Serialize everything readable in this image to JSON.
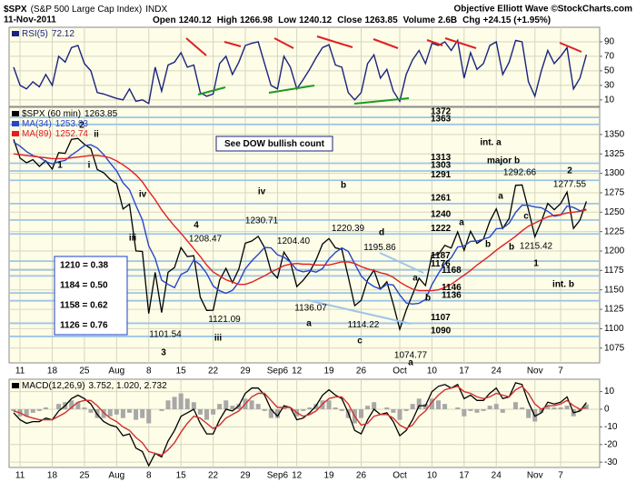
{
  "header": {
    "symbol": "$SPX",
    "title": "(S&P 500 Large Cap Index)",
    "exchange": "INDX",
    "date": "11-Nov-2011",
    "brand": "Objective Elliott Wave ©StockCharts.com",
    "quote": [
      {
        "label": "Open",
        "value": "1240.12"
      },
      {
        "label": "High",
        "value": "1266.98"
      },
      {
        "label": "Low",
        "value": "1240.12"
      },
      {
        "label": "Close",
        "value": "1263.85"
      },
      {
        "label": "Volume",
        "value": "2.6B"
      },
      {
        "label": "Chg",
        "value": "+24.15 (+1.95%)"
      }
    ]
  },
  "chart_data": {
    "type": "financial",
    "categories": [
      null,
      "11",
      null,
      null,
      null,
      null,
      "18",
      null,
      null,
      null,
      null,
      "25",
      null,
      null,
      null,
      null,
      "Aug",
      null,
      null,
      null,
      null,
      "8",
      null,
      null,
      null,
      null,
      "15",
      null,
      null,
      null,
      null,
      "22",
      null,
      null,
      null,
      null,
      "29",
      null,
      null,
      null,
      null,
      "Sep6",
      null,
      null,
      "12",
      null,
      null,
      null,
      null,
      "19",
      null,
      null,
      null,
      null,
      "26",
      null,
      null,
      null,
      null,
      null,
      "Oct",
      null,
      null,
      null,
      null,
      "10",
      null,
      null,
      null,
      null,
      "17",
      null,
      null,
      null,
      null,
      "24",
      null,
      null,
      null,
      null,
      null,
      "Nov",
      null,
      null,
      null,
      "7",
      null,
      null,
      null,
      null
    ],
    "panels": [
      {
        "ylim": [
          1,
          110
        ],
        "yticks": [
          90,
          70,
          50,
          30,
          10
        ],
        "grid": true,
        "series": [
          {
            "name": "RSI(5)",
            "type": "line",
            "color": "#1a237e",
            "values": [
              55,
              30,
              25,
              35,
              28,
              45,
              30,
              70,
              62,
              82,
              85,
              60,
              50,
              20,
              18,
              15,
              12,
              10,
              25,
              8,
              10,
              5,
              55,
              22,
              58,
              62,
              75,
              55,
              58,
              20,
              15,
              18,
              60,
              70,
              45,
              62,
              85,
              88,
              90,
              60,
              30,
              25,
              70,
              55,
              25,
              38,
              52,
              68,
              82,
              86,
              58,
              55,
              20,
              10,
              20,
              60,
              72,
              40,
              52,
              22,
              8,
              45,
              65,
              78,
              60,
              88,
              85,
              90,
              78,
              92,
              40,
              75,
              52,
              60,
              85,
              90,
              45,
              62,
              92,
              90,
              35,
              15,
              50,
              78,
              60,
              70,
              82,
              25,
              40,
              72.12
            ]
          }
        ]
      },
      {
        "ylim": [
          1056,
          1385
        ],
        "yticks": [
          1350,
          1325,
          1300,
          1275,
          1250,
          1225,
          1200,
          1175,
          1150,
          1125,
          1100,
          1075
        ],
        "grid": true,
        "series": [
          {
            "name": "$SPX (60 min)",
            "type": "line",
            "color": "#000000",
            "values": [
              1343.8,
              1319.5,
              1313.6,
              1317.7,
              1308.9,
              1316.1,
              1305.4,
              1326.7,
              1325.8,
              1343.8,
              1345.0,
              1337.4,
              1331.9,
              1304.9,
              1300.7,
              1292.3,
              1286.9,
              1254.1,
              1260.3,
              1200.1,
              1199.4,
              1119.5,
              1172.5,
              1120.8,
              1172.6,
              1178.8,
              1204.5,
              1192.8,
              1193.9,
              1140.7,
              1123.5,
              1123.8,
              1162.4,
              1177.6,
              1159.3,
              1176.8,
              1210.1,
              1212.9,
              1218.9,
              1204.4,
              1174.0,
              1165.2,
              1198.6,
              1185.9,
              1154.2,
              1162.3,
              1172.9,
              1188.7,
              1209.1,
              1216.0,
              1204.1,
              1202.1,
              1166.8,
              1129.6,
              1136.4,
              1162.9,
              1175.4,
              1151.1,
              1160.4,
              1131.4,
              1099.2,
              1123.9,
              1144.0,
              1165.0,
              1155.5,
              1194.9,
              1195.5,
              1207.3,
              1203.7,
              1224.6,
              1200.9,
              1225.4,
              1209.9,
              1215.4,
              1238.3,
              1254.2,
              1229.1,
              1242.0,
              1284.6,
              1285.1,
              1253.3,
              1218.3,
              1237.9,
              1261.2,
              1253.2,
              1261.1,
              1275.9,
              1229.1,
              1239.7,
              1263.85
            ]
          },
          {
            "name": "MA(34)",
            "type": "line",
            "color": "#2846c8",
            "values": [
              1340,
              1335,
              1328,
              1323,
              1320.7,
              1315.2,
              1312.3,
              1315.0,
              1316.6,
              1323.6,
              1329.3,
              1335.7,
              1336.8,
              1332.6,
              1324.0,
              1313.4,
              1303.3,
              1287.8,
              1278.9,
              1258.7,
              1240.2,
              1206.7,
              1190.4,
              1162.5,
              1157.0,
              1152.8,
              1169.8,
              1173.9,
              1188.5,
              1182.1,
              1171.1,
              1154.9,
              1148.9,
              1145.6,
              1149.3,
              1160.0,
              1177.2,
              1187.3,
              1195.6,
              1204.6,
              1204.1,
              1195.1,
              1192.2,
              1185.6,
              1175.6,
              1173.2,
              1174.8,
              1172.8,
              1177.4,
              1189.8,
              1198.2,
              1204.0,
              1199.6,
              1183.7,
              1167.8,
              1159.6,
              1154.2,
              1151.1,
              1157.2,
              1156.2,
              1143.5,
              1133.2,
              1131.8,
              1132.7,
              1137.5,
              1156.7,
              1171.0,
              1183.6,
              1191.4,
              1205.2,
              1206.4,
              1212.4,
              1212.9,
              1215.2,
              1218.0,
              1228.6,
              1229.4,
              1235.8,
              1249.6,
              1259.0,
              1258.8,
              1256.7,
              1255.8,
              1251.2,
              1244.8,
              1246.3,
              1257.9,
              1256.1,
              1251.8,
              1253.83
            ]
          },
          {
            "name": "MA(89)",
            "type": "line",
            "color": "#e02020",
            "values": [
              1325,
              1324,
              1323,
              1322,
              1321,
              1320,
              1319,
              1319,
              1319,
              1320,
              1321,
              1322,
              1323,
              1323,
              1322,
              1320,
              1316,
              1311,
              1305,
              1298,
              1289,
              1277,
              1266,
              1253,
              1242,
              1232,
              1223,
              1213,
              1203,
              1193,
              1182,
              1173,
              1168,
              1163,
              1160,
              1157,
              1157,
              1160,
              1164,
              1168,
              1173,
              1177,
              1181,
              1183,
              1184,
              1183,
              1183,
              1182,
              1182,
              1182,
              1184,
              1186,
              1186,
              1184,
              1180,
              1177,
              1175,
              1172,
              1170,
              1166,
              1160,
              1155,
              1151,
              1149,
              1149,
              1149,
              1150,
              1153,
              1157,
              1163,
              1169,
              1175,
              1182,
              1188,
              1194,
              1201,
              1207,
              1213,
              1219,
              1226,
              1232,
              1236,
              1240,
              1244,
              1246,
              1247,
              1249,
              1250,
              1251,
              1252.74
            ]
          }
        ],
        "levels": {
          "color": "#9ec5e6",
          "values": [
            1372,
            1363,
            1313,
            1303,
            1291,
            1261,
            1240,
            1222,
            1187,
            1176,
            1168,
            1146,
            1136,
            1107,
            1090
          ]
        },
        "pivots": {
          "values": [
            1208.47,
            1230.71,
            1204.4,
            1220.39,
            1195.86,
            1136.07,
            1121.09,
            1101.54,
            1114.22,
            1074.77,
            1292.66,
            1277.55,
            1215.42
          ],
          "value_labels": [
            "1208.47",
            "1230.71",
            "1204.40",
            "1220.39",
            "1195.86",
            "1136.07",
            "1121.09",
            "1101.54",
            "1114.22",
            "1074.77",
            "1292.66",
            "1277.55",
            "1215.42"
          ]
        },
        "annotations": [
          {
            "text": "1",
            "color": "#1f3f8f"
          },
          {
            "text": "2",
            "color": "#1f3f8f"
          },
          {
            "text": "ii",
            "color": "#2e7d6e"
          },
          {
            "text": "i",
            "color": "#2e7d6e"
          },
          {
            "text": "iv",
            "color": "#2e7d6e"
          },
          {
            "text": "iii",
            "color": "#2e7d6e"
          },
          {
            "text": "3",
            "color": "#1f3f8f"
          },
          {
            "text": "4",
            "color": "#1f3f8f"
          },
          {
            "text": "iii",
            "color": "#7b1f6e"
          },
          {
            "text": "iv",
            "color": "#7b1f6e"
          },
          {
            "text": "b",
            "color": "#1f3f8f"
          },
          {
            "text": "a",
            "color": "#1f3f8f"
          },
          {
            "text": "c",
            "color": "#1f3f8f"
          },
          {
            "text": "d",
            "color": "#1f3f8f"
          },
          {
            "text": "a",
            "color": "#1f3f8f"
          },
          {
            "text": "b",
            "color": "#1f3f8f"
          },
          {
            "text": "a",
            "color": "#000000"
          },
          {
            "text": "a",
            "color": "#7b1f6e"
          },
          {
            "text": "b",
            "color": "#7b1f6e"
          },
          {
            "text": "a",
            "color": "#1f3f8f"
          },
          {
            "text": "b",
            "color": "#1f3f8f"
          },
          {
            "text": "c",
            "color": "#1f3f8f"
          },
          {
            "text": "1",
            "color": "#1b8a1b"
          },
          {
            "text": "int. b",
            "color": "#1b8a1b"
          },
          {
            "text": "2",
            "color": "#1b8a1b"
          },
          {
            "text": "int. a",
            "color": "#1b8a1b"
          },
          {
            "text": "major b",
            "color": "#1b8a1b"
          }
        ],
        "fib_box": [
          "1210 = 0.38",
          "1184 = 0.50",
          "1158 = 0.62",
          "1126 = 0.76"
        ],
        "note": "See DOW bullish count"
      },
      {
        "ylim": [
          -33,
          17
        ],
        "yticks": [
          10,
          0,
          -10,
          -20,
          -30
        ],
        "grid": true,
        "readout": "3.752, 1.020, 2.732",
        "series": [
          {
            "type": "bar",
            "color": "#a8a8a8",
            "values": [
              -1,
              -4,
              -4,
              -2,
              -1,
              1,
              0,
              3,
              4,
              5,
              4,
              1,
              -2,
              -5,
              -5,
              -4,
              -3,
              -5,
              -2,
              -6,
              -5,
              -8,
              0,
              -1,
              5,
              7,
              9,
              6,
              4,
              -3,
              -6,
              -3,
              3,
              5,
              2,
              3,
              6,
              5,
              3,
              -1,
              -5,
              -5,
              1,
              0,
              -4,
              -1,
              1,
              3,
              5,
              5,
              1,
              -1,
              -5,
              -8,
              -5,
              2,
              4,
              0,
              1,
              -2,
              -6,
              -1,
              3,
              6,
              3,
              6,
              5,
              3,
              0,
              1,
              -4,
              -1,
              -2,
              -1,
              2,
              3,
              -2,
              0,
              4,
              1,
              -5,
              -7,
              -2,
              2,
              1,
              1,
              2,
              -4,
              -1,
              2.732
            ]
          },
          {
            "name": "MACD(12,26,9)",
            "type": "line",
            "color": "#000000",
            "values": [
              -2,
              -6,
              -8,
              -7,
              -7,
              -5,
              -6,
              -1,
              2,
              6,
              8,
              6,
              3,
              -3,
              -7,
              -9,
              -10,
              -15,
              -14,
              -22,
              -24,
              -32,
              -25,
              -27,
              -18,
              -12,
              -4,
              -2,
              0,
              -8,
              -14,
              -14,
              -6,
              0,
              -1,
              2,
              9,
              12,
              12,
              8,
              0,
              -4,
              2,
              1,
              -6,
              -5,
              -2,
              2,
              8,
              11,
              8,
              6,
              -2,
              -12,
              -14,
              -6,
              0,
              -3,
              -2,
              -7,
              -15,
              -12,
              -6,
              2,
              2,
              10,
              13,
              14,
              12,
              14,
              6,
              8,
              5,
              5,
              9,
              12,
              6,
              7,
              15,
              14,
              4,
              -4,
              -2,
              4,
              3,
              4,
              7,
              -2,
              -1,
              3.752
            ]
          },
          {
            "type": "line",
            "color": "#d03030",
            "values": [
              -1,
              -2,
              -4,
              -5,
              -6,
              -6,
              -6,
              -4,
              -2,
              1,
              4,
              5,
              5,
              2,
              -2,
              -5,
              -7,
              -10,
              -12,
              -16,
              -19,
              -24,
              -25,
              -26,
              -23,
              -19,
              -13,
              -8,
              -4,
              -5,
              -8,
              -11,
              -9,
              -5,
              -3,
              -1,
              3,
              7,
              9,
              9,
              5,
              1,
              1,
              1,
              -2,
              -4,
              -3,
              -1,
              3,
              6,
              7,
              7,
              3,
              -4,
              -9,
              -8,
              -4,
              -3,
              -3,
              -5,
              -9,
              -11,
              -9,
              -4,
              -1,
              4,
              8,
              11,
              12,
              13,
              10,
              9,
              7,
              6,
              7,
              9,
              8,
              7,
              11,
              13,
              9,
              3,
              0,
              2,
              2,
              3,
              5,
              2,
              0,
              1.02
            ]
          }
        ]
      }
    ]
  }
}
